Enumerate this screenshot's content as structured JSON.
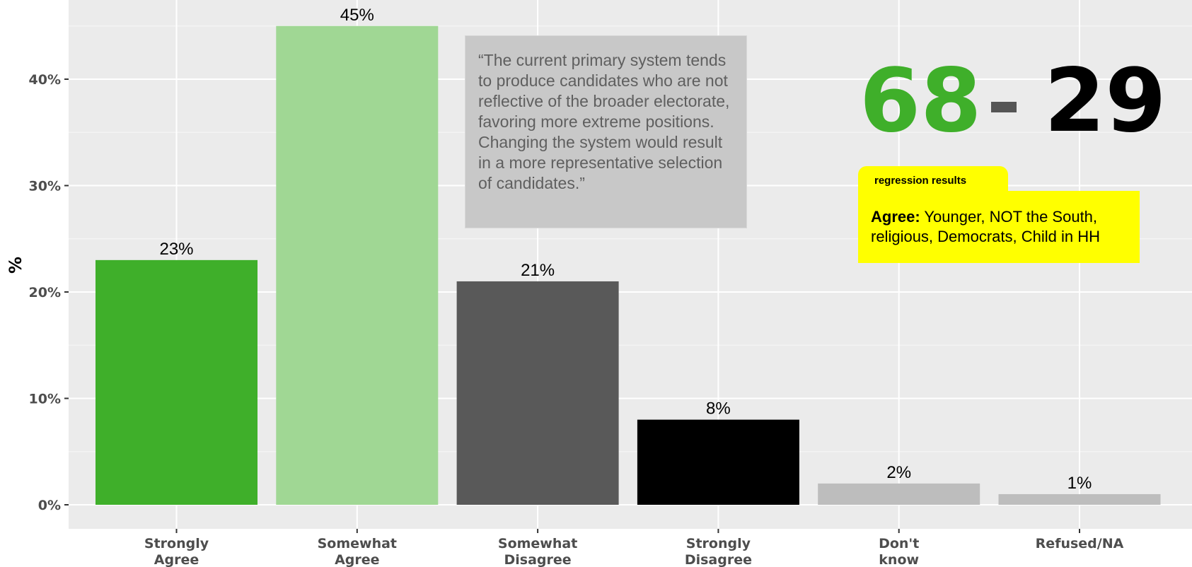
{
  "chart_data": {
    "type": "bar",
    "categories": [
      "Strongly\nAgree",
      "Somewhat\nAgree",
      "Somewhat\nDisagree",
      "Strongly\nDisagree",
      "Don't\nknow",
      "Refused/NA"
    ],
    "values": [
      23,
      45,
      21,
      8,
      2,
      1
    ],
    "data_labels": [
      "23%",
      "45%",
      "21%",
      "8%",
      "2%",
      "1%"
    ],
    "bar_colors": [
      "#3faf2a",
      "#a0d794",
      "#595959",
      "#000000",
      "#bdbdbd",
      "#bdbdbd"
    ],
    "ylabel": "%",
    "xlabel": "",
    "ylim": [
      0,
      46
    ],
    "yticks": [
      0,
      10,
      20,
      30,
      40
    ],
    "ytick_labels": [
      "0%",
      "10%",
      "20%",
      "30%",
      "40%"
    ],
    "grid": true,
    "panel_color": "#ebebeb"
  },
  "quote": "“The current primary system tends to produce candidates who are not reflective of the broader electorate, favoring more extreme positions. Changing the system would result in a more representative selection of candidates.”",
  "score": {
    "agree": "68",
    "disagree": "29",
    "agree_color": "#3faf2a",
    "disagree_color": "#000000"
  },
  "regression": {
    "tab_label": "regression results",
    "heading": "Agree:",
    "text": " Younger, NOT the South, religious, Democrats, Child in HH"
  }
}
